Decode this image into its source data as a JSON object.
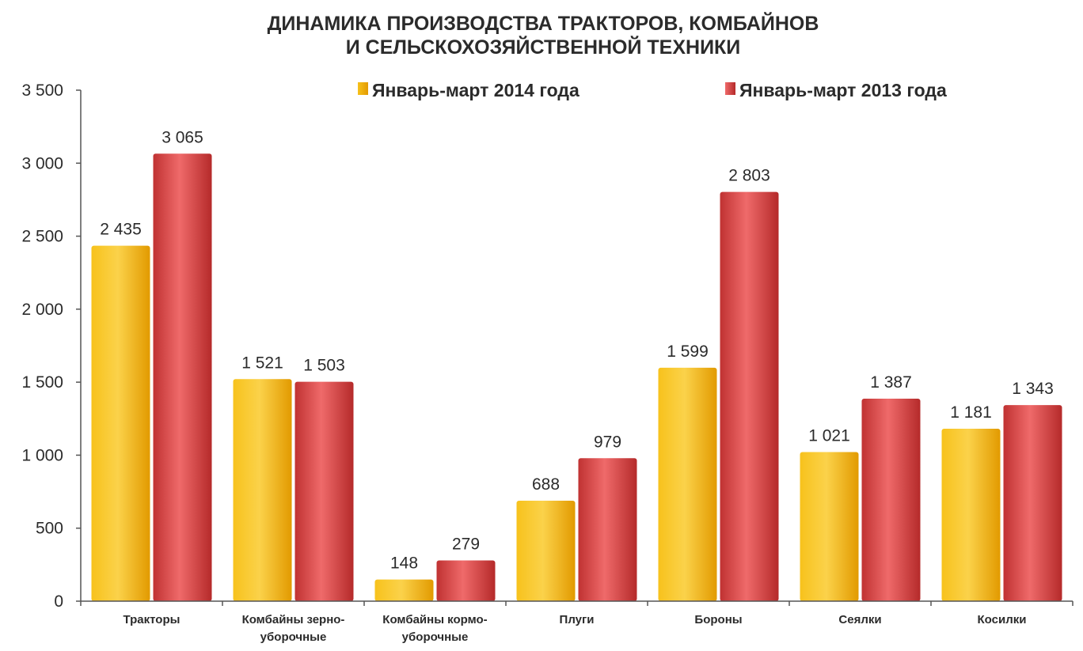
{
  "chart_data": {
    "type": "bar",
    "title_lines": [
      "ДИНАМИКА ПРОИЗВОДСТВА ТРАКТОРОВ, КОМБАЙНОВ",
      "И СЕЛЬСКОХОЗЯЙСТВЕННОЙ ТЕХНИКИ"
    ],
    "categories": [
      [
        "Тракторы"
      ],
      [
        "Комбайны зерно-",
        "уборочные"
      ],
      [
        "Комбайны кормо-",
        "уборочные"
      ],
      [
        "Плуги"
      ],
      [
        "Бороны"
      ],
      [
        "Сеялки"
      ],
      [
        "Косилки"
      ]
    ],
    "series": [
      {
        "name": "Январь-март 2014 года",
        "color": "#f2b705",
        "values": [
          2435,
          1521,
          148,
          688,
          1599,
          1021,
          1181
        ],
        "labels": [
          "2 435",
          "1 521",
          "148",
          "688",
          "1 599",
          "1 021",
          "1 181"
        ]
      },
      {
        "name": "Январь-март 2013 года",
        "color": "#d84545",
        "values": [
          3065,
          1503,
          279,
          979,
          2803,
          1387,
          1343
        ],
        "labels": [
          "3 065",
          "1 503",
          "279",
          "979",
          "2 803",
          "1 387",
          "1 343"
        ]
      }
    ],
    "ylim": [
      0,
      3500
    ],
    "yticks": [
      0,
      500,
      1000,
      1500,
      2000,
      2500,
      3000,
      3500
    ],
    "ytick_labels": [
      "0",
      "500",
      "1 000",
      "1 500",
      "2 000",
      "2 500",
      "3 000",
      "3 500"
    ],
    "grid": false,
    "legend_position": "top"
  }
}
